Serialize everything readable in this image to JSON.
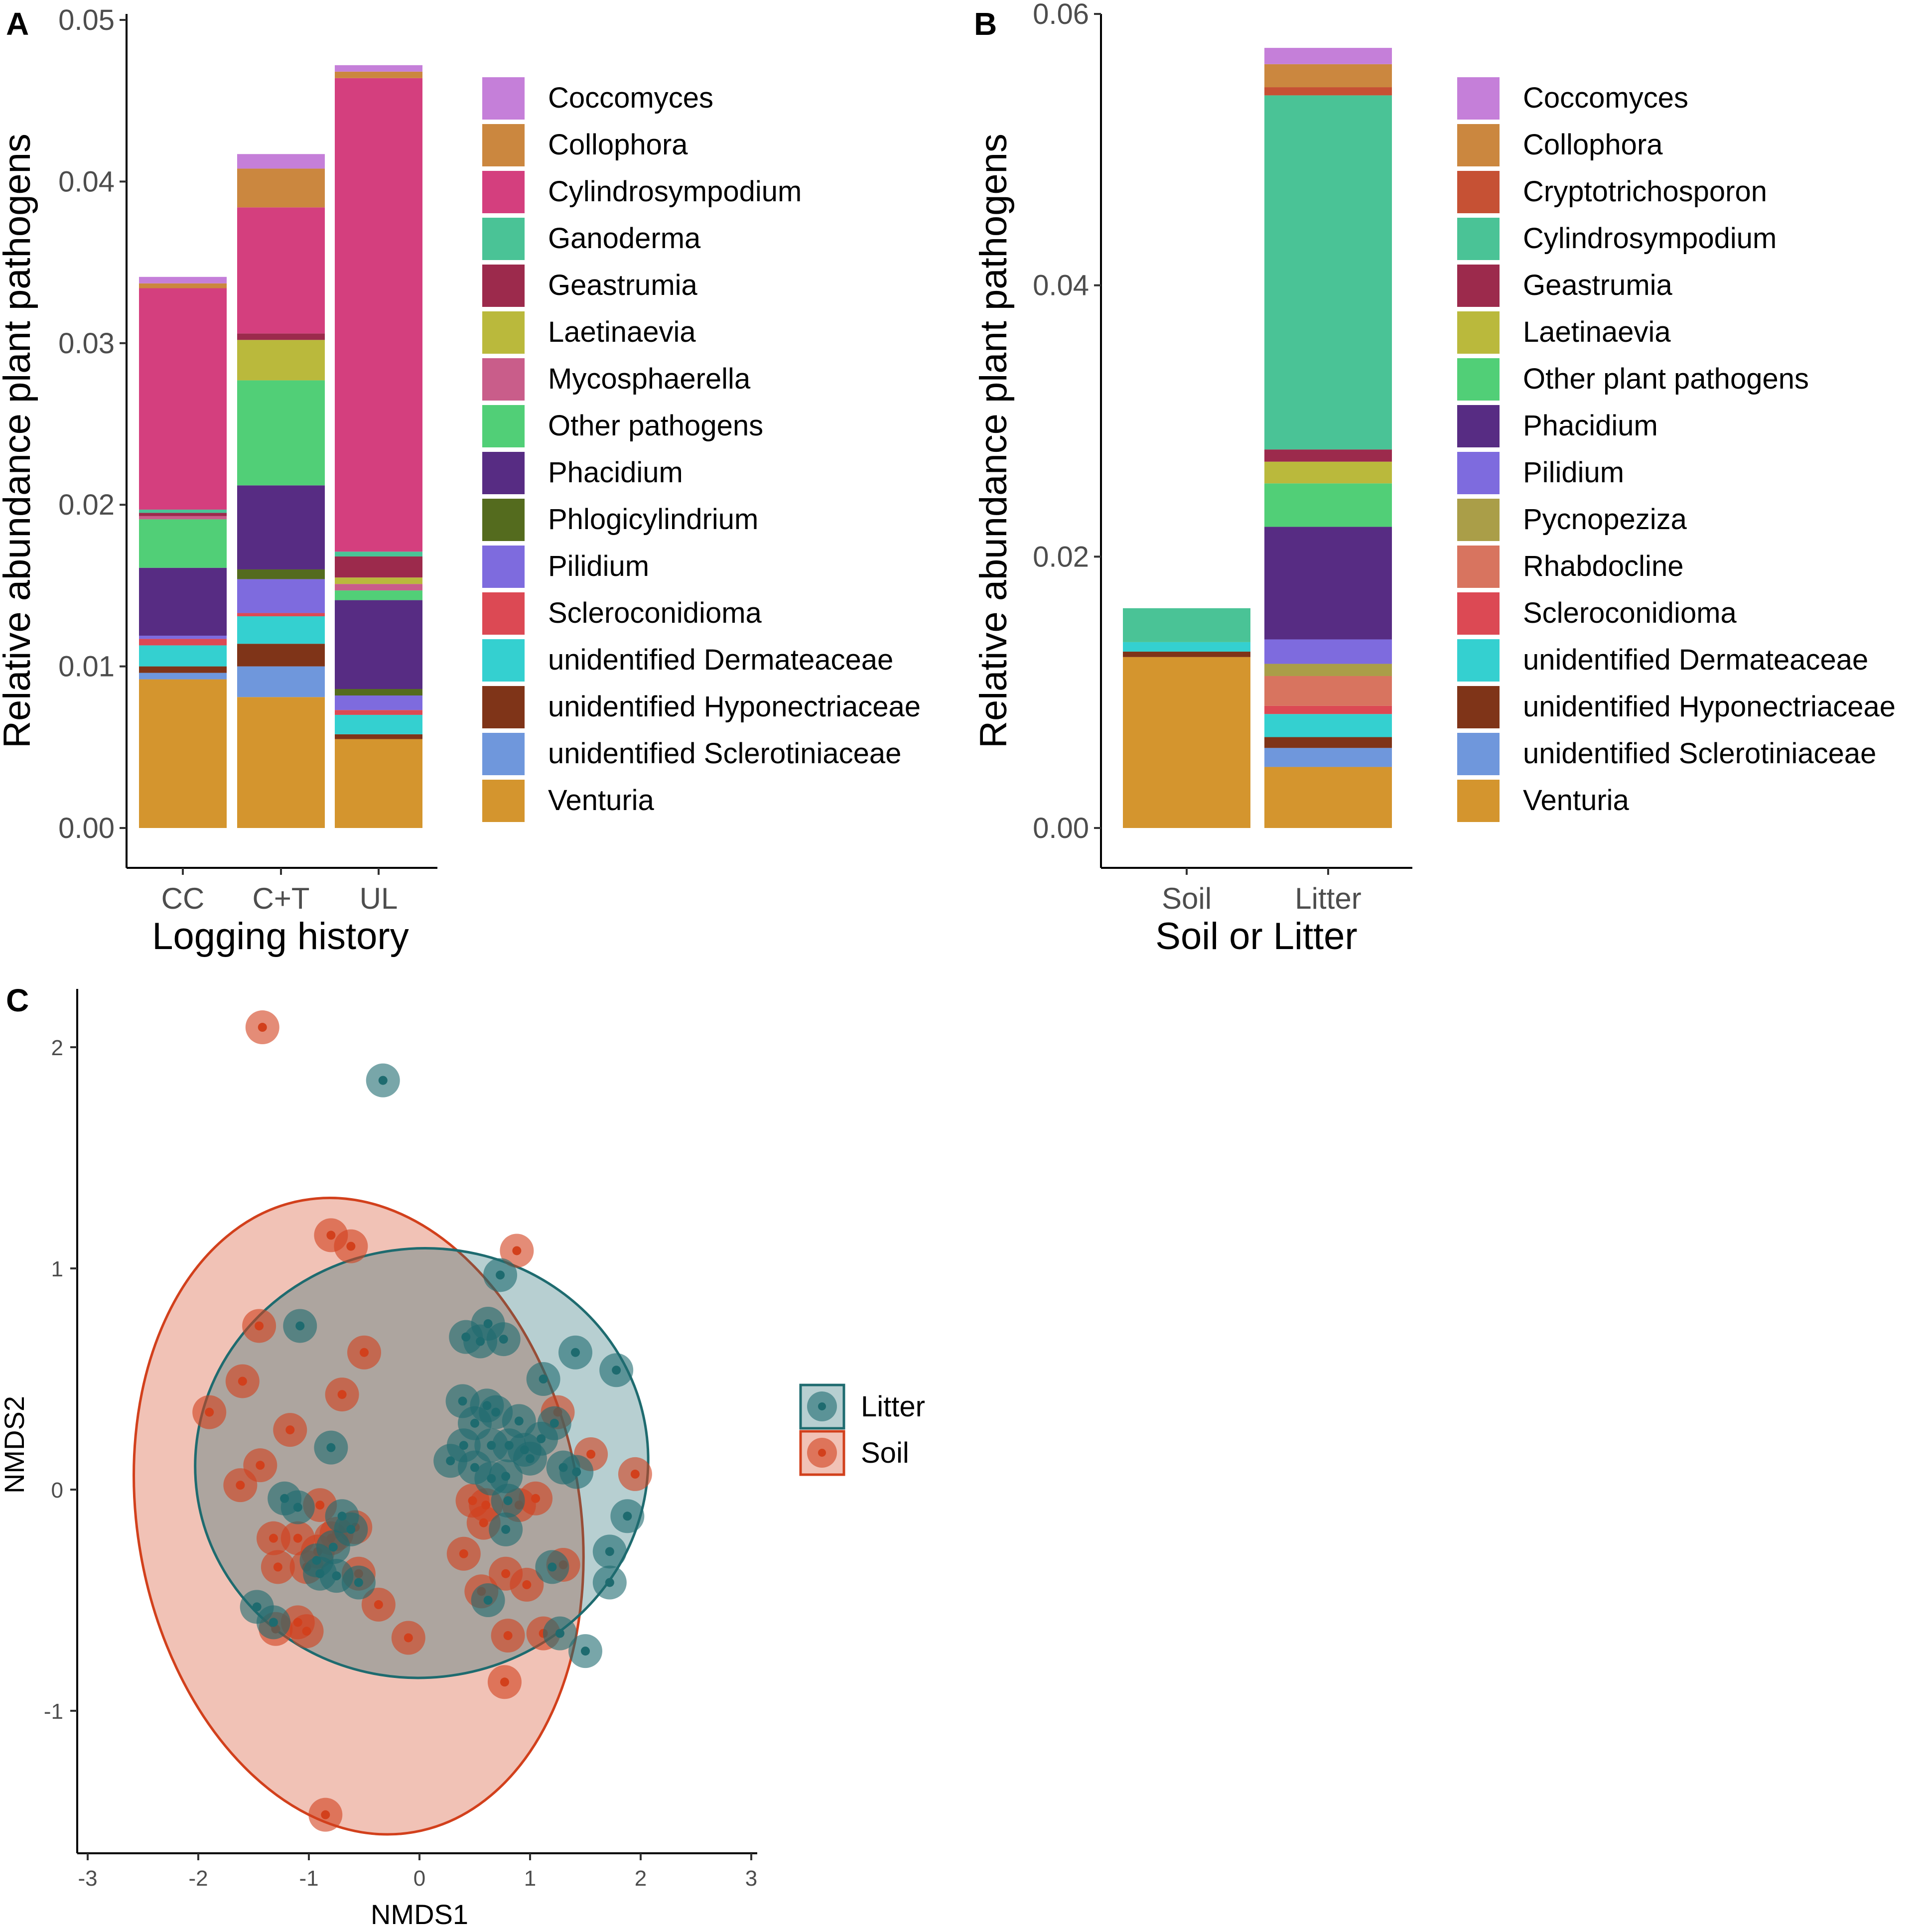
{
  "chart_data": [
    {
      "panel": "A",
      "type": "bar",
      "stacked": true,
      "xlabel": "Logging history",
      "ylabel": "Relative abundance plant pathogens",
      "categories": [
        "CC",
        "C+T",
        "UL"
      ],
      "ylim": [
        0,
        0.05
      ],
      "yticks": [
        "0.00",
        "0.01",
        "0.02",
        "0.03",
        "0.04",
        "0.05"
      ],
      "legend_position": "right",
      "series": [
        {
          "name": "Venturia",
          "color": "#D4952E",
          "values": [
            0.0092,
            0.0081,
            0.0055
          ]
        },
        {
          "name": "unidentified Sclerotiniaceae",
          "color": "#6F97DC",
          "values": [
            0.0004,
            0.0019,
            0.0
          ]
        },
        {
          "name": "unidentified Hyponectriaceae",
          "color": "#7F3418",
          "values": [
            0.0004,
            0.0014,
            0.0003
          ]
        },
        {
          "name": "unidentified Dermateaceae",
          "color": "#34D0D0",
          "values": [
            0.0013,
            0.0017,
            0.0012
          ]
        },
        {
          "name": "Scleroconidioma",
          "color": "#DC4954",
          "values": [
            0.0004,
            0.0002,
            0.0003
          ]
        },
        {
          "name": "Pilidium",
          "color": "#7E6BDE",
          "values": [
            0.0002,
            0.0021,
            0.0009
          ]
        },
        {
          "name": "Phlogicylindrium",
          "color": "#546B1E",
          "values": [
            0.0,
            0.0006,
            0.0004
          ]
        },
        {
          "name": "Phacidium",
          "color": "#572C83",
          "values": [
            0.0042,
            0.0052,
            0.0055
          ]
        },
        {
          "name": "Other pathogens",
          "color": "#51CF77",
          "values": [
            0.003,
            0.0065,
            0.0006
          ]
        },
        {
          "name": "Mycosphaerella",
          "color": "#C95D8A",
          "values": [
            0.0002,
            0.0,
            0.0004
          ]
        },
        {
          "name": "Laetinaevia",
          "color": "#BAB93C",
          "values": [
            0.0,
            0.0025,
            0.0004
          ]
        },
        {
          "name": "Geastrumia",
          "color": "#9C2A4C",
          "values": [
            0.0002,
            0.0004,
            0.0013
          ]
        },
        {
          "name": "Ganoderma",
          "color": "#4AC396",
          "values": [
            0.0002,
            0.0,
            0.0003
          ]
        },
        {
          "name": "Cylindrosympodium",
          "color": "#D43F7E",
          "values": [
            0.0137,
            0.0078,
            0.0293
          ]
        },
        {
          "name": "Collophora",
          "color": "#CB873F",
          "values": [
            0.0003,
            0.0024,
            0.0004
          ]
        },
        {
          "name": "Coccomyces",
          "color": "#C57FD9",
          "values": [
            0.0004,
            0.0009,
            0.0004
          ]
        }
      ],
      "legend_order": [
        "Coccomyces",
        "Collophora",
        "Cylindrosympodium",
        "Ganoderma",
        "Geastrumia",
        "Laetinaevia",
        "Mycosphaerella",
        "Other pathogens",
        "Phacidium",
        "Phlogicylindrium",
        "Pilidium",
        "Scleroconidioma",
        "unidentified Dermateaceae",
        "unidentified Hyponectriaceae",
        "unidentified Sclerotiniaceae",
        "Venturia"
      ]
    },
    {
      "panel": "B",
      "type": "bar",
      "stacked": true,
      "xlabel": "Soil or Litter",
      "ylabel": "Relative abundance plant pathogens",
      "categories": [
        "Soil",
        "Litter"
      ],
      "ylim": [
        0,
        0.06
      ],
      "yticks": [
        "0.00",
        "0.02",
        "0.04",
        "0.06"
      ],
      "legend_position": "right",
      "series": [
        {
          "name": "Venturia",
          "color": "#D4952E",
          "values": [
            0.0126,
            0.0045
          ]
        },
        {
          "name": "unidentified Sclerotiniaceae",
          "color": "#6F97DC",
          "values": [
            0.0,
            0.0014
          ]
        },
        {
          "name": "unidentified Hyponectriaceae",
          "color": "#7F3418",
          "values": [
            0.0004,
            0.0008
          ]
        },
        {
          "name": "unidentified Dermateaceae",
          "color": "#34D0D0",
          "values": [
            0.0007,
            0.0017
          ]
        },
        {
          "name": "Scleroconidioma",
          "color": "#DC4954",
          "values": [
            0.0,
            0.0006
          ]
        },
        {
          "name": "Rhabdocline",
          "color": "#D8745F",
          "values": [
            0.0,
            0.0022
          ]
        },
        {
          "name": "Pycnopeziza",
          "color": "#AA9E48",
          "values": [
            0.0,
            0.0009
          ]
        },
        {
          "name": "Pilidium",
          "color": "#7E6BDE",
          "values": [
            0.0,
            0.0018
          ]
        },
        {
          "name": "Phacidium",
          "color": "#572C83",
          "values": [
            0.0,
            0.0083
          ]
        },
        {
          "name": "Other plant pathogens",
          "color": "#51CF77",
          "values": [
            0.0,
            0.0032
          ]
        },
        {
          "name": "Laetinaevia",
          "color": "#BAB93C",
          "values": [
            0.0,
            0.0016
          ]
        },
        {
          "name": "Geastrumia",
          "color": "#9C2A4C",
          "values": [
            0.0,
            0.0009
          ]
        },
        {
          "name": "Cylindrosympodium",
          "color": "#4AC396",
          "values": [
            0.0025,
            0.0261
          ]
        },
        {
          "name": "Cryptotrichosporon",
          "color": "#C65134",
          "values": [
            0.0,
            0.0006
          ]
        },
        {
          "name": "Collophora",
          "color": "#CB873F",
          "values": [
            0.0,
            0.0017
          ]
        },
        {
          "name": "Coccomyces",
          "color": "#C57FD9",
          "values": [
            0.0,
            0.0012
          ]
        }
      ],
      "legend_order": [
        "Coccomyces",
        "Collophora",
        "Cryptotrichosporon",
        "Cylindrosympodium",
        "Geastrumia",
        "Laetinaevia",
        "Other plant pathogens",
        "Phacidium",
        "Pilidium",
        "Pycnopeziza",
        "Rhabdocline",
        "Scleroconidioma",
        "unidentified Dermateaceae",
        "unidentified Hyponectriaceae",
        "unidentified Sclerotiniaceae",
        "Venturia"
      ]
    },
    {
      "panel": "C",
      "type": "scatter",
      "xlabel": "NMDS1",
      "ylabel": "NMDS2",
      "xlim": [
        -3,
        3
      ],
      "ylim": [
        -1.65,
        2.25
      ],
      "xticks": [
        "-3",
        "-2",
        "-1",
        "0",
        "1",
        "2",
        "3"
      ],
      "yticks": [
        "-1",
        "0",
        "1",
        "2"
      ],
      "legend_position": "right",
      "series": [
        {
          "name": "Litter",
          "color": "#1E6B6F",
          "fill": "#1E6B6F",
          "ellipse": {
            "center": [
              0.02,
              0.12
            ],
            "semi_axes": [
              2.05,
              0.97
            ],
            "angle_deg": 8
          },
          "points": [
            [
              -0.33,
              1.85
            ],
            [
              0.73,
              0.97
            ],
            [
              1.41,
              0.62
            ],
            [
              1.78,
              0.54
            ],
            [
              -1.08,
              0.74
            ],
            [
              0.42,
              0.69
            ],
            [
              0.62,
              0.75
            ],
            [
              0.76,
              0.68
            ],
            [
              0.55,
              0.67
            ],
            [
              1.12,
              0.5
            ],
            [
              0.39,
              0.4
            ],
            [
              0.61,
              0.38
            ],
            [
              0.69,
              0.35
            ],
            [
              0.5,
              0.3
            ],
            [
              0.9,
              0.31
            ],
            [
              1.22,
              0.3
            ],
            [
              0.4,
              0.2
            ],
            [
              0.65,
              0.2
            ],
            [
              0.81,
              0.2
            ],
            [
              0.95,
              0.18
            ],
            [
              1.1,
              0.23
            ],
            [
              0.28,
              0.13
            ],
            [
              0.5,
              0.1
            ],
            [
              0.65,
              0.05
            ],
            [
              0.78,
              0.06
            ],
            [
              1.0,
              0.14
            ],
            [
              1.3,
              0.1
            ],
            [
              1.42,
              0.08
            ],
            [
              -0.8,
              0.19
            ],
            [
              -1.22,
              -0.04
            ],
            [
              -1.1,
              -0.08
            ],
            [
              -0.7,
              -0.12
            ],
            [
              -0.62,
              -0.18
            ],
            [
              -0.78,
              -0.26
            ],
            [
              -0.93,
              -0.32
            ],
            [
              -0.75,
              -0.39
            ],
            [
              -0.55,
              -0.42
            ],
            [
              -1.47,
              -0.53
            ],
            [
              -1.32,
              -0.6
            ],
            [
              -0.9,
              -0.38
            ],
            [
              0.8,
              -0.05
            ],
            [
              0.78,
              -0.18
            ],
            [
              0.62,
              -0.5
            ],
            [
              1.2,
              -0.35
            ],
            [
              1.72,
              -0.28
            ],
            [
              1.72,
              -0.42
            ],
            [
              1.88,
              -0.12
            ],
            [
              1.27,
              -0.65
            ],
            [
              1.5,
              -0.73
            ]
          ]
        },
        {
          "name": "Soil",
          "color": "#D2401C",
          "fill": "#D2401C",
          "ellipse": {
            "center": [
              -0.55,
              -0.12
            ],
            "semi_axes": [
              2.0,
              1.45
            ],
            "angle_deg": 10
          },
          "points": [
            [
              -1.42,
              2.09
            ],
            [
              -0.8,
              1.15
            ],
            [
              -0.62,
              1.1
            ],
            [
              0.88,
              1.08
            ],
            [
              -1.45,
              0.74
            ],
            [
              -0.5,
              0.62
            ],
            [
              -1.6,
              0.49
            ],
            [
              -0.7,
              0.43
            ],
            [
              -1.9,
              0.35
            ],
            [
              1.25,
              0.35
            ],
            [
              -1.17,
              0.27
            ],
            [
              -1.44,
              0.11
            ],
            [
              -1.62,
              0.02
            ],
            [
              1.55,
              0.16
            ],
            [
              1.95,
              0.07
            ],
            [
              0.6,
              -0.07
            ],
            [
              -0.9,
              -0.07
            ],
            [
              -1.32,
              -0.22
            ],
            [
              -1.1,
              -0.22
            ],
            [
              -0.8,
              -0.22
            ],
            [
              -0.75,
              -0.2
            ],
            [
              -0.58,
              -0.17
            ],
            [
              -1.28,
              -0.35
            ],
            [
              -1.02,
              -0.35
            ],
            [
              -0.92,
              -0.28
            ],
            [
              -0.55,
              -0.38
            ],
            [
              0.48,
              -0.05
            ],
            [
              0.58,
              -0.15
            ],
            [
              0.9,
              -0.07
            ],
            [
              1.05,
              -0.04
            ],
            [
              -0.37,
              -0.52
            ],
            [
              -1.3,
              -0.63
            ],
            [
              -1.1,
              -0.6
            ],
            [
              -1.02,
              -0.64
            ],
            [
              -0.1,
              -0.67
            ],
            [
              0.4,
              -0.29
            ],
            [
              0.56,
              -0.46
            ],
            [
              0.78,
              -0.38
            ],
            [
              0.97,
              -0.43
            ],
            [
              0.8,
              -0.66
            ],
            [
              1.12,
              -0.65
            ],
            [
              1.3,
              -0.34
            ],
            [
              0.77,
              -0.87
            ],
            [
              -0.85,
              -1.47
            ]
          ]
        }
      ]
    }
  ],
  "panels": {
    "A": {
      "letter": "A"
    },
    "B": {
      "letter": "B"
    },
    "C": {
      "letter": "C"
    }
  }
}
